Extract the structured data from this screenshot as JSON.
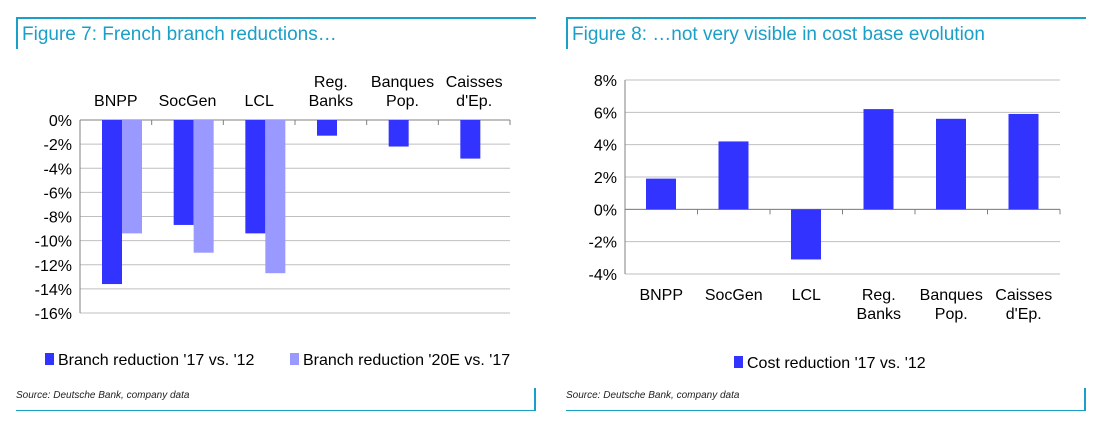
{
  "figures": [
    {
      "fig_label": "Figure 7:",
      "title": "French branch reductions…",
      "source": "Source: Deutsche Bank, company data"
    },
    {
      "fig_label": "Figure 8:",
      "title": "…not very visible in cost base evolution",
      "source": "Source: Deutsche Bank, company data"
    }
  ],
  "colors": {
    "accent": "#1a9fc9",
    "series_dark": "#3333ff",
    "series_light": "#9999ff",
    "grid": "#bfbfbf"
  },
  "chart_data": [
    {
      "type": "bar",
      "title": "French branch reductions…",
      "categories": [
        "BNPP",
        "SocGen",
        "LCL",
        "Reg. Banks",
        "Banques Pop.",
        "Caisses d'Ep."
      ],
      "category_label_lines": [
        [
          "BNPP"
        ],
        [
          "SocGen"
        ],
        [
          "LCL"
        ],
        [
          "Reg.",
          "Banks"
        ],
        [
          "Banques",
          "Pop."
        ],
        [
          "Caisses",
          "d'Ep."
        ]
      ],
      "series": [
        {
          "name": "Branch reduction '17 vs. '12",
          "color": "#3333ff",
          "values": [
            -13.6,
            -8.7,
            -9.4,
            -1.3,
            -2.2,
            -3.2
          ]
        },
        {
          "name": "Branch reduction '20E vs. '17",
          "color": "#9999ff",
          "values": [
            -9.4,
            -11.0,
            -12.7,
            null,
            null,
            null
          ]
        }
      ],
      "ylim": [
        -16,
        0
      ],
      "yticks": [
        0,
        -2,
        -4,
        -6,
        -8,
        -10,
        -12,
        -14,
        -16
      ],
      "ytick_labels": [
        "0%",
        "-2%",
        "-4%",
        "-6%",
        "-8%",
        "-10%",
        "-12%",
        "-14%",
        "-16%"
      ],
      "category_labels_position": "top",
      "grid": true,
      "legend": "bottom"
    },
    {
      "type": "bar",
      "title": "…not very visible in cost base evolution",
      "categories": [
        "BNPP",
        "SocGen",
        "LCL",
        "Reg. Banks",
        "Banques Pop.",
        "Caisses d'Ep."
      ],
      "category_label_lines": [
        [
          "BNPP"
        ],
        [
          "SocGen"
        ],
        [
          "LCL"
        ],
        [
          "Reg.",
          "Banks"
        ],
        [
          "Banques",
          "Pop."
        ],
        [
          "Caisses",
          "d'Ep."
        ]
      ],
      "series": [
        {
          "name": "Cost reduction '17 vs. '12",
          "color": "#3333ff",
          "values": [
            1.9,
            4.2,
            -3.1,
            6.2,
            5.6,
            5.9
          ]
        }
      ],
      "ylim": [
        -4,
        8
      ],
      "yticks": [
        8,
        6,
        4,
        2,
        0,
        -2,
        -4
      ],
      "ytick_labels": [
        "8%",
        "6%",
        "4%",
        "2%",
        "0%",
        "-2%",
        "-4%"
      ],
      "category_labels_position": "bottom",
      "grid": true,
      "legend": "bottom"
    }
  ]
}
